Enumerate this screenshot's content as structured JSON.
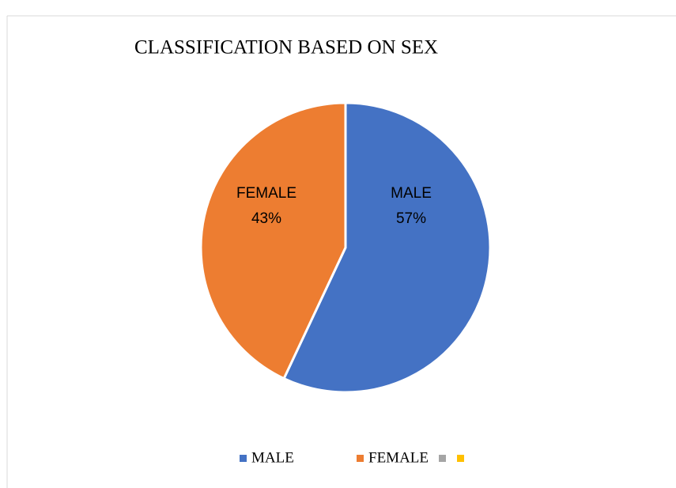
{
  "chart_data": {
    "type": "pie",
    "title": "CLASSIFICATION BASED ON SEX",
    "categories": [
      "MALE",
      "FEMALE",
      null,
      null
    ],
    "values": [
      57,
      43,
      0,
      0
    ],
    "value_labels": [
      "57%",
      "43%",
      null,
      null
    ],
    "colors": [
      "#4472c4",
      "#ed7d31",
      "#a5a5a5",
      "#ffc000"
    ],
    "legend": "bottom"
  }
}
